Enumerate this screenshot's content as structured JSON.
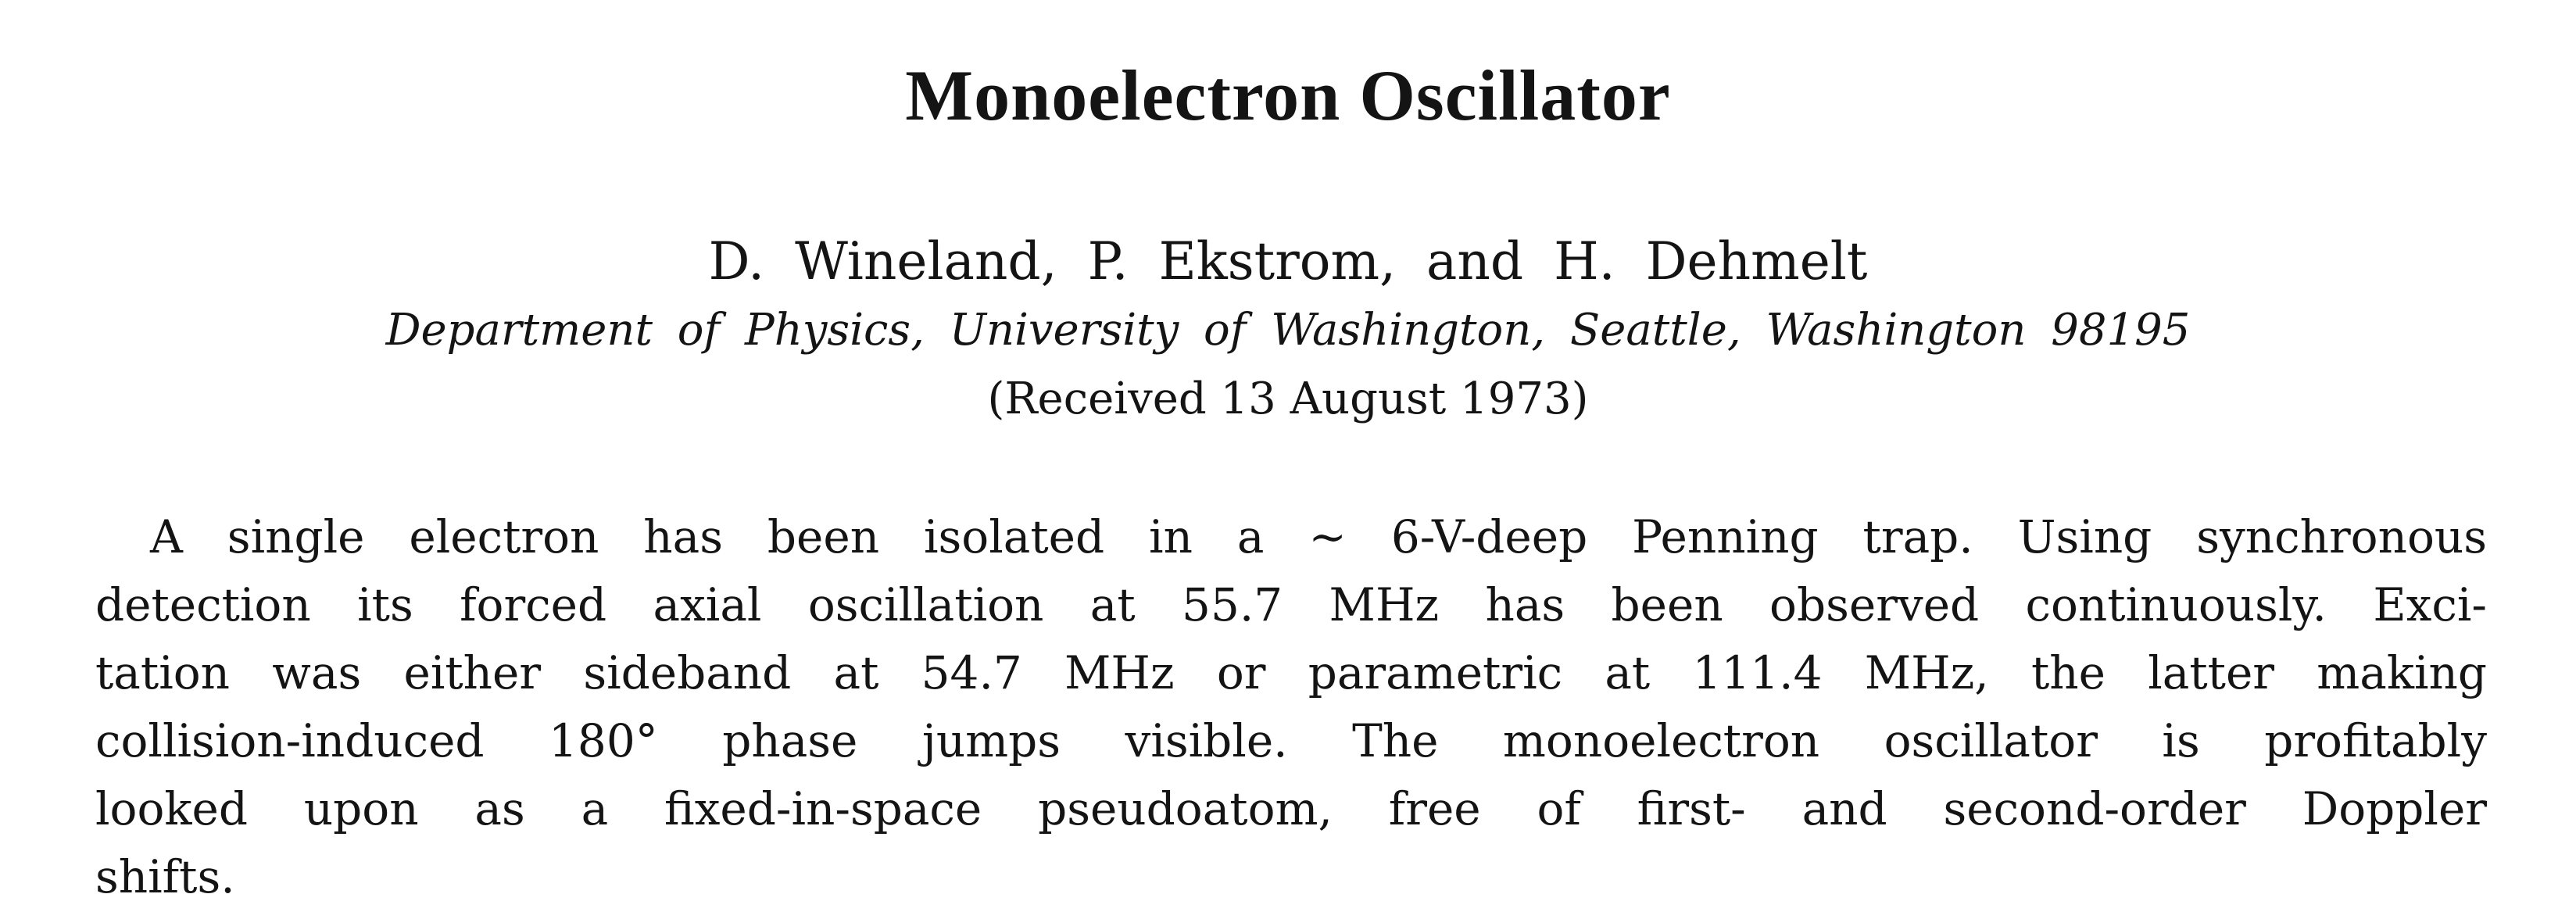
{
  "paper": {
    "title": "Monoelectron Oscillator",
    "authors": "D. Wineland, P. Ekstrom, and H. Dehmelt",
    "affiliation": "Department of Physics, University of Washington, Seattle, Washington 98195",
    "received": "(Received 13 August 1973)",
    "abstract_lines": [
      "A single electron has been isolated in a ~ 6-V-deep Penning trap.  Using synchronous",
      "detection its forced axial oscillation at 55.7 MHz has been observed continuously.  Exci-",
      "tation was either sideband at 54.7 MHz or parametric at 111.4 MHz, the latter making",
      "collision-induced 180° phase jumps visible.  The monoelectron oscillator is profitably",
      "looked upon as a fixed-in-space pseudoatom, free of first- and second-order Doppler",
      "shifts."
    ]
  }
}
